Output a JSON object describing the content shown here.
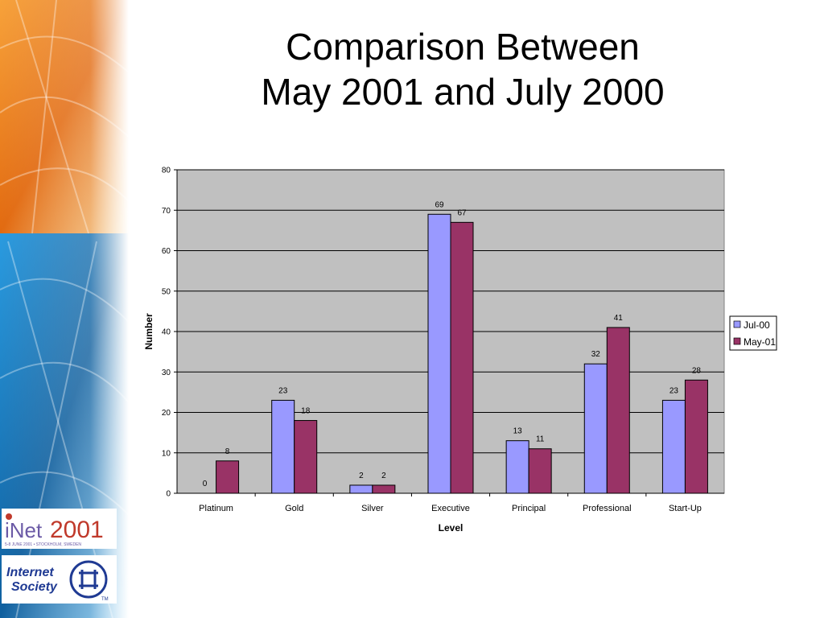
{
  "slide": {
    "title_line1": "Comparison Between",
    "title_line2": "May 2001 and July 2000"
  },
  "logos": {
    "inet": "INET 2001",
    "inet_subtitle": "5-8 JUNE 2001 • STOCKHOLM, SWEDEN",
    "isoc_line1": "Internet",
    "isoc_line2": "Society",
    "isoc_tm": "TM"
  },
  "colors": {
    "series_jul00": "#9999ff",
    "series_may01": "#993366",
    "plot_area": "#c0c0c0",
    "banner_orange": "#e8741a",
    "banner_blue": "#1a7fc4"
  },
  "chart_data": {
    "type": "bar",
    "title": "",
    "xlabel": "Level",
    "ylabel": "Number",
    "ylim": [
      0,
      80
    ],
    "yticks": [
      0,
      10,
      20,
      30,
      40,
      50,
      60,
      70,
      80
    ],
    "grid": true,
    "legend_position": "right",
    "categories": [
      "Platinum",
      "Gold",
      "Silver",
      "Executive",
      "Principal",
      "Professional",
      "Start-Up"
    ],
    "series": [
      {
        "name": "Jul-00",
        "values": [
          0,
          23,
          2,
          69,
          13,
          32,
          23
        ],
        "color": "#9999ff"
      },
      {
        "name": "May-01",
        "values": [
          8,
          18,
          2,
          67,
          11,
          41,
          28
        ],
        "color": "#993366"
      }
    ]
  }
}
